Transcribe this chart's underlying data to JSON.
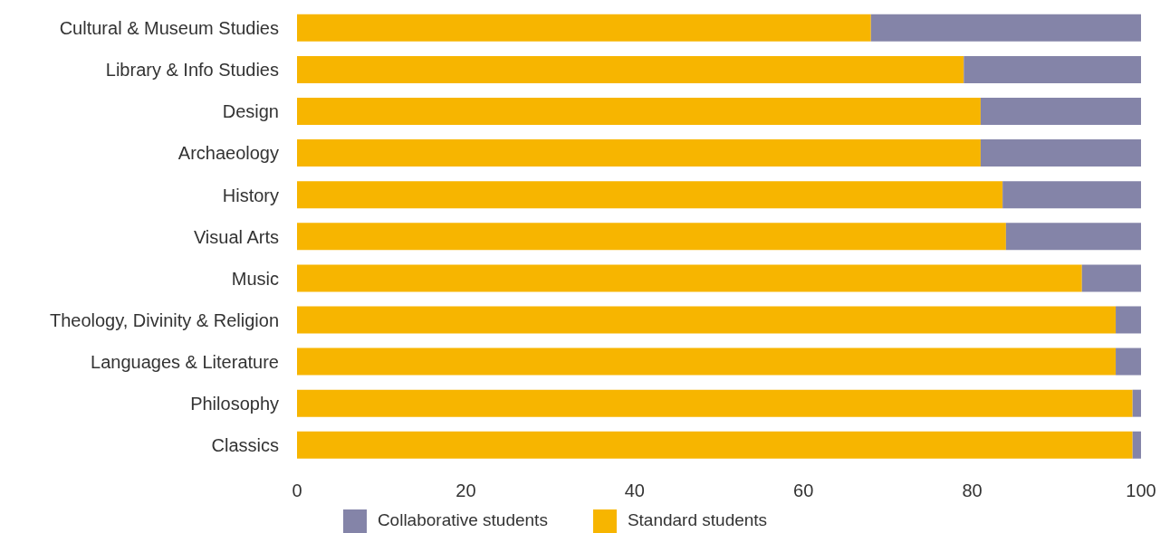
{
  "chart_data": {
    "type": "bar",
    "orientation": "horizontal",
    "stacked": true,
    "categories": [
      "Cultural & Museum Studies",
      "Library & Info Studies",
      "Design",
      "Archaeology",
      "History",
      "Visual Arts",
      "Music",
      "Theology, Divinity & Religion",
      "Languages & Literature",
      "Philosophy",
      "Classics"
    ],
    "series": [
      {
        "name": "Standard students",
        "color": "#f7b500",
        "values": [
          68,
          79,
          81,
          81,
          83.6,
          84,
          93,
          97,
          97,
          99,
          99
        ]
      },
      {
        "name": "Collaborative students",
        "color": "#8484a8",
        "values": [
          32,
          21,
          19,
          19,
          16.4,
          16,
          7,
          3,
          3,
          1,
          1
        ]
      }
    ],
    "xlim": [
      0,
      100
    ],
    "xticks": [
      0,
      20,
      40,
      60,
      80,
      100
    ],
    "grid": false,
    "legend": "bottom"
  }
}
